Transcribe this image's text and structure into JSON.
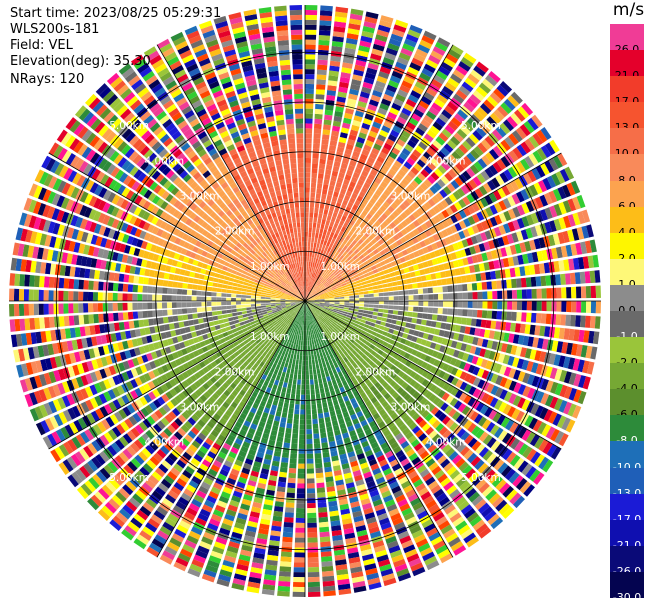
{
  "info": {
    "start_time": "Start time: 2023/08/25 05:29:31",
    "instrument": "WLS200s-181",
    "field": "Field: VEL",
    "elevation": "Elevation(deg): 35.30",
    "nrays": "NRays: 120"
  },
  "chart_data": {
    "type": "heatmap",
    "subtype": "ppi_polar_scan",
    "field": "VEL",
    "units": "m/s",
    "rays": 120,
    "elevation_deg": 35.3,
    "range_rings_km": [
      1.0,
      2.0,
      3.0,
      4.0,
      5.0
    ],
    "range_ring_labels": [
      "1.00km",
      "2.00km",
      "3.00km",
      "4.00km",
      "5.00km"
    ],
    "max_range_km": 5.95,
    "clean_data_range_km": 3.5,
    "azimuth_spoke_step_deg": 30,
    "velocity_sectors": [
      {
        "azimuth_from_deg": -30,
        "azimuth_to_deg": 30,
        "velocity_ms": 10.0
      },
      {
        "azimuth_from_deg": 30,
        "azimuth_to_deg": 70,
        "velocity_ms": 6.0
      },
      {
        "azimuth_from_deg": 70,
        "azimuth_to_deg": 85,
        "velocity_ms": 3.0
      },
      {
        "azimuth_from_deg": 85,
        "azimuth_to_deg": 95,
        "velocity_ms": 0.0
      },
      {
        "azimuth_from_deg": 95,
        "azimuth_to_deg": 110,
        "velocity_ms": -1.5
      },
      {
        "azimuth_from_deg": 110,
        "azimuth_to_deg": 150,
        "velocity_ms": -5.0
      },
      {
        "azimuth_from_deg": 150,
        "azimuth_to_deg": 210,
        "velocity_ms": -9.0
      },
      {
        "azimuth_from_deg": 210,
        "azimuth_to_deg": 250,
        "velocity_ms": -5.0
      },
      {
        "azimuth_from_deg": 250,
        "azimuth_to_deg": 265,
        "velocity_ms": -1.5
      },
      {
        "azimuth_from_deg": 265,
        "azimuth_to_deg": 275,
        "velocity_ms": 0.0
      },
      {
        "azimuth_from_deg": 275,
        "azimuth_to_deg": 290,
        "velocity_ms": 3.0
      },
      {
        "azimuth_from_deg": 290,
        "azimuth_to_deg": 330,
        "velocity_ms": 6.0
      }
    ],
    "colorbar": {
      "unit": "m/s",
      "ticks": [
        "26.0",
        "21.0",
        "17.0",
        "13.0",
        "10.0",
        "8.0",
        "6.0",
        "4.0",
        "2.0",
        "1.0",
        "0.0",
        "-1.0",
        "-2.0",
        "-4.0",
        "-6.0",
        "-8.0",
        "-10.0",
        "-13.0",
        "-17.0",
        "-21.0",
        "-26.0",
        "-30.0"
      ],
      "colors": [
        "#f03c96",
        "#e4002b",
        "#f23c2a",
        "#f6542f",
        "#f66e48",
        "#f98a5a",
        "#fca34f",
        "#fdbd18",
        "#fef600",
        "#fef878",
        "#8c8c8c",
        "#6a6a6a",
        "#9ac53a",
        "#76a834",
        "#5c8f2d",
        "#2d8b3a",
        "#1e6fb8",
        "#1f5fb8",
        "#1b1bd6",
        "#0f0fb0",
        "#0a0a78",
        "#040450"
      ],
      "label_colors": [
        "#000",
        "#000",
        "#000",
        "#000",
        "#000",
        "#000",
        "#000",
        "#000",
        "#000",
        "#000",
        "#000",
        "#fff",
        "#000",
        "#000",
        "#000",
        "#fff",
        "#fff",
        "#fff",
        "#fff",
        "#fff",
        "#fff",
        "#fff"
      ]
    }
  }
}
